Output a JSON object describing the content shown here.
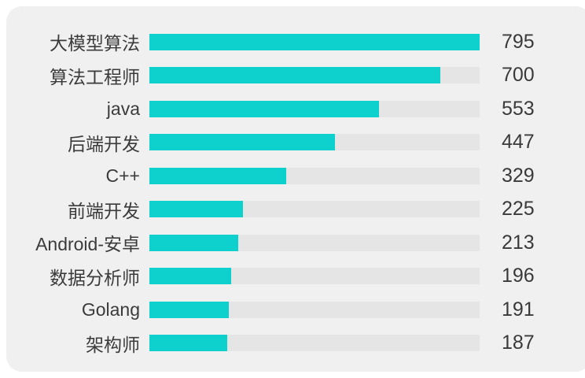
{
  "colors": {
    "page_bg": "#FFFFFF",
    "card_bg": "#F0F0F1",
    "bar": "#0ED1CE",
    "track": "#E5E5E6",
    "text": "#3B3B3B"
  },
  "chart_data": {
    "type": "bar",
    "orientation": "horizontal",
    "title": "",
    "xlabel": "",
    "ylabel": "",
    "categories": [
      "大模型算法",
      "算法工程师",
      "java",
      "后端开发",
      "C++",
      "前端开发",
      "Android-安卓",
      "数据分析师",
      "Golang",
      "架构师"
    ],
    "values": [
      795,
      700,
      553,
      447,
      329,
      225,
      213,
      196,
      191,
      187
    ],
    "xlim": [
      0,
      795
    ],
    "grid": false,
    "legend": "none",
    "value_labels": "right of track"
  }
}
